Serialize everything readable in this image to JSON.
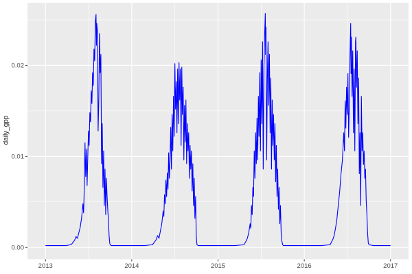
{
  "chart_data": {
    "type": "line",
    "title": "",
    "xlabel": "",
    "ylabel": "daily_gpp",
    "legend": "none",
    "grid": "major+minor",
    "panel_bg": "#EBEBEB",
    "grid_color": "#FFFFFF",
    "line_color": "#0000FF",
    "tick_text_color": "#4D4D4D",
    "axis_title_color": "#1A1A1A",
    "tick_mark_color": "#333333",
    "x_range": [
      2012.791,
      2017.209
    ],
    "y_range": [
      -0.0013,
      0.02688
    ],
    "x_major_ticks": [
      2013,
      2014,
      2015,
      2016,
      2017
    ],
    "x_tick_labels": [
      "2013",
      "2014",
      "2015",
      "2016",
      "2017"
    ],
    "x_minor_ticks": [
      2013.5,
      2014.5,
      2015.5,
      2016.5
    ],
    "y_major_ticks": [
      0.0,
      0.01,
      0.02
    ],
    "y_tick_labels": [
      "0.00",
      "0.01",
      "0.02"
    ],
    "y_minor_ticks": [
      0.005,
      0.015,
      0.025
    ],
    "series": [
      {
        "name": "daily_gpp",
        "points": [
          [
            2013.0,
            0.0002
          ],
          [
            2013.08,
            0.0002
          ],
          [
            2013.16,
            0.0002
          ],
          [
            2013.24,
            0.0002
          ],
          [
            2013.29,
            0.0003
          ],
          [
            2013.306,
            0.0004
          ],
          [
            2013.322,
            0.0006
          ],
          [
            2013.338,
            0.0008
          ],
          [
            2013.354,
            0.0012
          ],
          [
            2013.37,
            0.001
          ],
          [
            2013.386,
            0.0016
          ],
          [
            2013.402,
            0.0022
          ],
          [
            2013.418,
            0.0032
          ],
          [
            2013.434,
            0.0048
          ],
          [
            2013.442,
            0.0038
          ],
          [
            2013.45,
            0.0068
          ],
          [
            2013.458,
            0.0115
          ],
          [
            2013.466,
            0.0078
          ],
          [
            2013.474,
            0.0108
          ],
          [
            2013.482,
            0.0068
          ],
          [
            2013.49,
            0.0098
          ],
          [
            2013.498,
            0.0128
          ],
          [
            2013.506,
            0.0112
          ],
          [
            2013.514,
            0.0148
          ],
          [
            2013.522,
            0.0138
          ],
          [
            2013.53,
            0.0172
          ],
          [
            2013.538,
            0.0158
          ],
          [
            2013.546,
            0.0192
          ],
          [
            2013.554,
            0.0178
          ],
          [
            2013.562,
            0.0218
          ],
          [
            2013.57,
            0.0205
          ],
          [
            2013.578,
            0.0248
          ],
          [
            2013.586,
            0.0256
          ],
          [
            2013.59,
            0.0222
          ],
          [
            2013.594,
            0.0246
          ],
          [
            2013.602,
            0.0238
          ],
          [
            2013.61,
            0.0128
          ],
          [
            2013.618,
            0.0162
          ],
          [
            2013.626,
            0.0235
          ],
          [
            2013.634,
            0.0192
          ],
          [
            2013.642,
            0.0212
          ],
          [
            2013.65,
            0.0092
          ],
          [
            2013.658,
            0.0136
          ],
          [
            2013.666,
            0.0066
          ],
          [
            2013.674,
            0.0106
          ],
          [
            2013.682,
            0.0046
          ],
          [
            2013.69,
            0.0086
          ],
          [
            2013.698,
            0.0036
          ],
          [
            2013.706,
            0.0076
          ],
          [
            2013.714,
            0.0056
          ],
          [
            2013.722,
            0.0042
          ],
          [
            2013.73,
            0.0028
          ],
          [
            2013.738,
            0.0012
          ],
          [
            2013.746,
            0.0004
          ],
          [
            2013.76,
            0.0002
          ],
          [
            2013.85,
            0.0002
          ],
          [
            2013.95,
            0.0002
          ],
          [
            2014.05,
            0.0002
          ],
          [
            2014.15,
            0.0002
          ],
          [
            2014.24,
            0.0003
          ],
          [
            2014.256,
            0.0005
          ],
          [
            2014.28,
            0.0008
          ],
          [
            2014.3,
            0.0013
          ],
          [
            2014.316,
            0.001
          ],
          [
            2014.332,
            0.0018
          ],
          [
            2014.348,
            0.0026
          ],
          [
            2014.364,
            0.004
          ],
          [
            2014.372,
            0.0034
          ],
          [
            2014.38,
            0.0058
          ],
          [
            2014.388,
            0.0048
          ],
          [
            2014.396,
            0.0074
          ],
          [
            2014.404,
            0.0056
          ],
          [
            2014.412,
            0.0082
          ],
          [
            2014.42,
            0.0064
          ],
          [
            2014.428,
            0.0104
          ],
          [
            2014.436,
            0.0076
          ],
          [
            2014.444,
            0.0096
          ],
          [
            2014.452,
            0.0132
          ],
          [
            2014.46,
            0.0086
          ],
          [
            2014.468,
            0.0146
          ],
          [
            2014.476,
            0.0106
          ],
          [
            2014.484,
            0.0166
          ],
          [
            2014.492,
            0.0122
          ],
          [
            2014.5,
            0.0202
          ],
          [
            2014.508,
            0.0152
          ],
          [
            2014.516,
            0.0182
          ],
          [
            2014.524,
            0.0126
          ],
          [
            2014.532,
            0.0196
          ],
          [
            2014.54,
            0.0136
          ],
          [
            2014.548,
            0.0203
          ],
          [
            2014.556,
            0.0162
          ],
          [
            2014.564,
            0.0196
          ],
          [
            2014.572,
            0.0112
          ],
          [
            2014.58,
            0.0198
          ],
          [
            2014.588,
            0.0146
          ],
          [
            2014.596,
            0.0176
          ],
          [
            2014.604,
            0.0096
          ],
          [
            2014.612,
            0.0156
          ],
          [
            2014.62,
            0.0116
          ],
          [
            2014.628,
            0.0162
          ],
          [
            2014.636,
            0.0092
          ],
          [
            2014.644,
            0.0136
          ],
          [
            2014.652,
            0.0106
          ],
          [
            2014.66,
            0.0126
          ],
          [
            2014.668,
            0.0076
          ],
          [
            2014.676,
            0.0112
          ],
          [
            2014.684,
            0.0086
          ],
          [
            2014.692,
            0.0106
          ],
          [
            2014.7,
            0.0062
          ],
          [
            2014.708,
            0.0092
          ],
          [
            2014.716,
            0.0046
          ],
          [
            2014.724,
            0.0076
          ],
          [
            2014.732,
            0.0032
          ],
          [
            2014.74,
            0.0056
          ],
          [
            2014.748,
            0.0012
          ],
          [
            2014.756,
            0.0003
          ],
          [
            2014.77,
            0.0002
          ],
          [
            2014.9,
            0.0002
          ],
          [
            2015.05,
            0.0002
          ],
          [
            2015.2,
            0.0002
          ],
          [
            2015.3,
            0.0003
          ],
          [
            2015.32,
            0.0006
          ],
          [
            2015.34,
            0.001
          ],
          [
            2015.356,
            0.0016
          ],
          [
            2015.372,
            0.0026
          ],
          [
            2015.38,
            0.0021
          ],
          [
            2015.388,
            0.0046
          ],
          [
            2015.396,
            0.0036
          ],
          [
            2015.404,
            0.0066
          ],
          [
            2015.412,
            0.0056
          ],
          [
            2015.42,
            0.0106
          ],
          [
            2015.428,
            0.0076
          ],
          [
            2015.436,
            0.0126
          ],
          [
            2015.444,
            0.0092
          ],
          [
            2015.452,
            0.0142
          ],
          [
            2015.46,
            0.0096
          ],
          [
            2015.468,
            0.0166
          ],
          [
            2015.476,
            0.0122
          ],
          [
            2015.484,
            0.0192
          ],
          [
            2015.492,
            0.0106
          ],
          [
            2015.5,
            0.0206
          ],
          [
            2015.508,
            0.0136
          ],
          [
            2015.516,
            0.0226
          ],
          [
            2015.524,
            0.0086
          ],
          [
            2015.532,
            0.0196
          ],
          [
            2015.54,
            0.0232
          ],
          [
            2015.548,
            0.0257
          ],
          [
            2015.552,
            0.0212
          ],
          [
            2015.556,
            0.0242
          ],
          [
            2015.564,
            0.0096
          ],
          [
            2015.572,
            0.0186
          ],
          [
            2015.58,
            0.0226
          ],
          [
            2015.588,
            0.0156
          ],
          [
            2015.596,
            0.0212
          ],
          [
            2015.604,
            0.0126
          ],
          [
            2015.612,
            0.0186
          ],
          [
            2015.62,
            0.0086
          ],
          [
            2015.628,
            0.0162
          ],
          [
            2015.636,
            0.0112
          ],
          [
            2015.644,
            0.0146
          ],
          [
            2015.652,
            0.0096
          ],
          [
            2015.66,
            0.0136
          ],
          [
            2015.668,
            0.0072
          ],
          [
            2015.676,
            0.0112
          ],
          [
            2015.684,
            0.0056
          ],
          [
            2015.692,
            0.0086
          ],
          [
            2015.7,
            0.0042
          ],
          [
            2015.708,
            0.0066
          ],
          [
            2015.716,
            0.0026
          ],
          [
            2015.724,
            0.0046
          ],
          [
            2015.732,
            0.0016
          ],
          [
            2015.74,
            0.0007
          ],
          [
            2015.75,
            0.0003
          ],
          [
            2015.76,
            0.0002
          ],
          [
            2015.9,
            0.0002
          ],
          [
            2016.05,
            0.0002
          ],
          [
            2016.2,
            0.0002
          ],
          [
            2016.3,
            0.0003
          ],
          [
            2016.316,
            0.0006
          ],
          [
            2016.332,
            0.0009
          ],
          [
            2016.346,
            0.0013
          ],
          [
            2016.362,
            0.0021
          ],
          [
            2016.378,
            0.0031
          ],
          [
            2016.394,
            0.0046
          ],
          [
            2016.41,
            0.0061
          ],
          [
            2016.426,
            0.0081
          ],
          [
            2016.442,
            0.0096
          ],
          [
            2016.45,
            0.0111
          ],
          [
            2016.458,
            0.0126
          ],
          [
            2016.466,
            0.0106
          ],
          [
            2016.474,
            0.0161
          ],
          [
            2016.482,
            0.0131
          ],
          [
            2016.49,
            0.0176
          ],
          [
            2016.498,
            0.0146
          ],
          [
            2016.506,
            0.0191
          ],
          [
            2016.514,
            0.0121
          ],
          [
            2016.522,
            0.0156
          ],
          [
            2016.53,
            0.0211
          ],
          [
            2016.538,
            0.0246
          ],
          [
            2016.542,
            0.0191
          ],
          [
            2016.546,
            0.0231
          ],
          [
            2016.554,
            0.0166
          ],
          [
            2016.562,
            0.0216
          ],
          [
            2016.57,
            0.0126
          ],
          [
            2016.578,
            0.0196
          ],
          [
            2016.586,
            0.0106
          ],
          [
            2016.594,
            0.0226
          ],
          [
            2016.598,
            0.0231
          ],
          [
            2016.606,
            0.0176
          ],
          [
            2016.614,
            0.0216
          ],
          [
            2016.622,
            0.0136
          ],
          [
            2016.63,
            0.0186
          ],
          [
            2016.638,
            0.0081
          ],
          [
            2016.646,
            0.0126
          ],
          [
            2016.654,
            0.0046
          ],
          [
            2016.662,
            0.0166
          ],
          [
            2016.67,
            0.0106
          ],
          [
            2016.678,
            0.0126
          ],
          [
            2016.686,
            0.0091
          ],
          [
            2016.694,
            0.0106
          ],
          [
            2016.702,
            0.0076
          ],
          [
            2016.71,
            0.0086
          ],
          [
            2016.718,
            0.0051
          ],
          [
            2016.726,
            0.0036
          ],
          [
            2016.734,
            0.0016
          ],
          [
            2016.742,
            0.0005
          ],
          [
            2016.75,
            0.0003
          ],
          [
            2016.8,
            0.0002
          ],
          [
            2016.9,
            0.0002
          ],
          [
            2017.0,
            0.0002
          ]
        ]
      }
    ]
  }
}
